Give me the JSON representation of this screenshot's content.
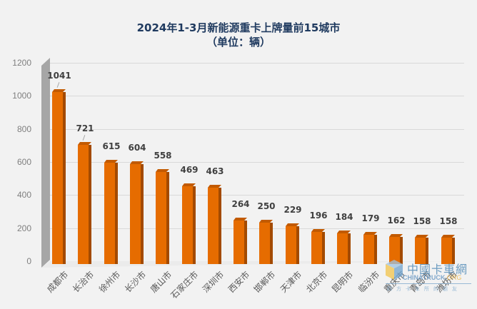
{
  "chart_data": {
    "type": "bar",
    "title": "2024年1-3月新能源重卡上牌量前15城市",
    "subtitle": "（单位：辆）",
    "xlabel": "",
    "ylabel": "",
    "ylim": [
      0,
      1200
    ],
    "yticks": [
      0,
      200,
      400,
      600,
      800,
      1000,
      1200
    ],
    "grid": true,
    "legend": "none",
    "categories": [
      "成都市",
      "长治市",
      "徐州市",
      "长沙市",
      "唐山市",
      "石家庄市",
      "深圳市",
      "西安市",
      "邯郸市",
      "天津市",
      "北京市",
      "昆明市",
      "临汾市",
      "重庆市",
      "青岛市",
      "潍坊市"
    ],
    "values": [
      1041,
      721,
      615,
      604,
      558,
      469,
      463,
      264,
      250,
      229,
      196,
      184,
      179,
      162,
      158,
      158
    ],
    "bar_color": "#e66c00"
  },
  "watermark": {
    "cn": "中國卡車網",
    "en_prefix": "CHINATRUCK.",
    "en_suffix": "ORG",
    "sub": "四方卡车所的朋友"
  }
}
